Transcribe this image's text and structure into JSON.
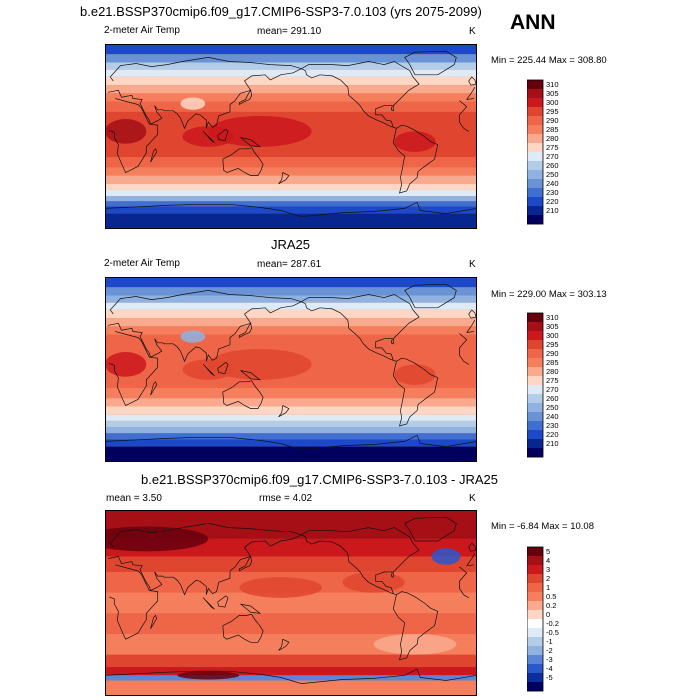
{
  "season": "ANN",
  "chart_data": [
    {
      "type": "heatmap",
      "title": "b.e21.BSSP370cmip6.f09_g17.CMIP6-SSP3-7.0.103 (yrs 2075-2099)",
      "variable": "2-meter Air Temp",
      "mean_text": "mean= 291.10",
      "units": "K",
      "min_max_text": "Min = 225.44 Max = 308.80",
      "colorbar_levels": [
        "310",
        "305",
        "300",
        "295",
        "290",
        "285",
        "280",
        "275",
        "270",
        "260",
        "250",
        "240",
        "230",
        "220",
        "210"
      ],
      "colors": [
        "#67000d",
        "#a50f15",
        "#cb181d",
        "#e0452f",
        "#ef6548",
        "#f57f5c",
        "#f9a98e",
        "#fdd7c4",
        "#deebf7",
        "#b3cde9",
        "#8fb2e0",
        "#6a93d6",
        "#3f6fd1",
        "#1b49c7",
        "#08268f",
        "#02005e"
      ],
      "statistics": {
        "mean": 291.1,
        "min": 225.44,
        "max": 308.8
      }
    },
    {
      "type": "heatmap",
      "title": "JRA25",
      "variable": "2-meter Air Temp",
      "mean_text": "mean= 287.61",
      "units": "K",
      "min_max_text": "Min = 229.00 Max = 303.13",
      "colorbar_levels": [
        "310",
        "305",
        "300",
        "295",
        "290",
        "285",
        "280",
        "275",
        "270",
        "260",
        "250",
        "240",
        "230",
        "220",
        "210"
      ],
      "colors": [
        "#67000d",
        "#a50f15",
        "#cb181d",
        "#e0452f",
        "#ef6548",
        "#f57f5c",
        "#f9a98e",
        "#fdd7c4",
        "#deebf7",
        "#b3cde9",
        "#8fb2e0",
        "#6a93d6",
        "#3f6fd1",
        "#1b49c7",
        "#08268f",
        "#02005e"
      ],
      "statistics": {
        "mean": 287.61,
        "min": 229.0,
        "max": 303.13
      }
    },
    {
      "type": "heatmap",
      "title": "b.e21.BSSP370cmip6.f09_g17.CMIP6-SSP3-7.0.103 - JRA25",
      "mean_text": "mean =   3.50",
      "rmse_text": "rmse =   4.02",
      "units": "K",
      "min_max_text": "Min =  -6.84 Max =  10.08",
      "colorbar_levels": [
        "5",
        "4",
        "3",
        "2",
        "1",
        "0.5",
        "0.2",
        "0",
        "-0.2",
        "-0.5",
        "-1",
        "-2",
        "-3",
        "-4",
        "-5"
      ],
      "colors": [
        "#67000d",
        "#a50f15",
        "#cb181d",
        "#e0452f",
        "#ef6548",
        "#f57f5c",
        "#f9a98e",
        "#fdd7c4",
        "#ffffff",
        "#deebf7",
        "#b3cde9",
        "#8fb2e0",
        "#5b86d8",
        "#2a58cc",
        "#0c2e9c",
        "#02005e"
      ],
      "statistics": {
        "mean": 3.5,
        "rmse": 4.02,
        "min": -6.84,
        "max": 10.08
      }
    }
  ]
}
